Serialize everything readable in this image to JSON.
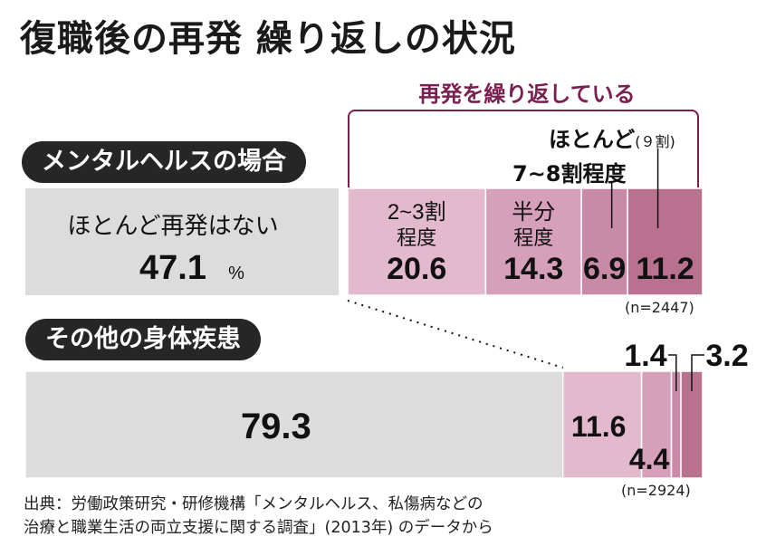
{
  "header": {
    "title": "復職後の再発 繰り返しの状況"
  },
  "bracket": {
    "label": "再発を繰り返している"
  },
  "labels": {
    "pct": "%",
    "mostly": "ほとんど",
    "mostly_sub": "(９割)",
    "seven_eight": "7~8割程度"
  },
  "colors": {
    "none": "#dcdcdc",
    "seg1": "#e3b9cd",
    "seg2": "#d6a0ba",
    "seg3": "#c98aa8",
    "seg4": "#b8718f",
    "bracket": "#7a2050",
    "pill": "#262626"
  },
  "chart_data": [
    {
      "type": "bar",
      "title": "メンタルヘルスの場合",
      "note": "(n=2447)",
      "unit": "%",
      "categories": [
        "ほとんど再発はない",
        "2~3割程度",
        "半分程度",
        "7~8割程度",
        "ほとんど(9割)"
      ],
      "values": [
        47.1,
        20.6,
        14.3,
        6.9,
        11.2
      ]
    },
    {
      "type": "bar",
      "title": "その他の身体疾患",
      "note": "(n=2924)",
      "unit": "%",
      "categories": [
        "ほとんど再発はない",
        "2~3割程度",
        "半分程度",
        "7~8割程度",
        "ほとんど(9割)"
      ],
      "values": [
        79.3,
        11.6,
        4.4,
        1.4,
        3.2
      ]
    }
  ],
  "source": {
    "line1": "出典：労働政策研究・研修機構「メンタルヘルス、私傷病などの",
    "line2": "治療と職業生活の両立支援に関する調査」(2013年) のデータから"
  }
}
